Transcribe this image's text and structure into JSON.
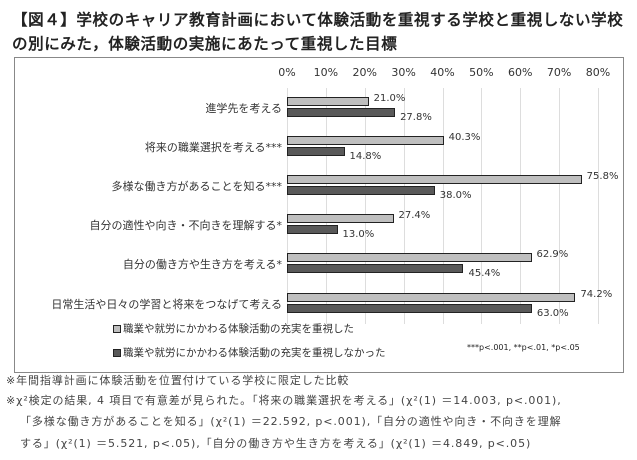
{
  "chart_data": {
    "type": "bar",
    "orientation": "horizontal",
    "title": "【図４】学校のキャリア教育計画において体験活動を重視する学校と重視しない学校の別にみた，体験活動の実施にあたって重視した目標",
    "categories": [
      "進学先を考える",
      "将来の職業選択を考える***",
      "多様な働き方があることを知る***",
      "自分の適性や向き・不向きを理解する*",
      "自分の働き方や生き方を考える*",
      "日常生活や日々の学習と将来をつなげて考える"
    ],
    "series": [
      {
        "name": "職業や就労にかかわる体験活動の充実を重視した",
        "color": "#bfbfbf",
        "values": [
          21.0,
          40.3,
          75.8,
          27.4,
          62.9,
          74.2
        ]
      },
      {
        "name": "職業や就労にかかわる体験活動の充実を重視しなかった",
        "color": "#595959",
        "values": [
          27.8,
          14.8,
          38.0,
          13.0,
          45.4,
          63.0
        ]
      }
    ],
    "xticks": [
      "0%",
      "10%",
      "20%",
      "30%",
      "40%",
      "50%",
      "60%",
      "70%",
      "80%"
    ],
    "xlim": [
      0,
      80
    ],
    "grid": true,
    "legend": "bottom-left",
    "significance_note": "***p<.001, **p<.01, *p<.05"
  },
  "notes": [
    "※年間指導計画に体験活動を位置付けている学校に限定した比較",
    "※χ²検定の結果, 4 項目で有意差が見られた。「将来の職業選択を考える」(χ²(1) ＝14.003, p<.001),",
    "「多様な働き方があることを知る」(χ²(1) ＝22.592, p<.001),「自分の適性や向き・不向きを理解",
    "する」(χ²(1) ＝5.521, p<.05),「自分の働き方や生き方を考える」(χ²(1) ＝4.849, p<.05)"
  ]
}
